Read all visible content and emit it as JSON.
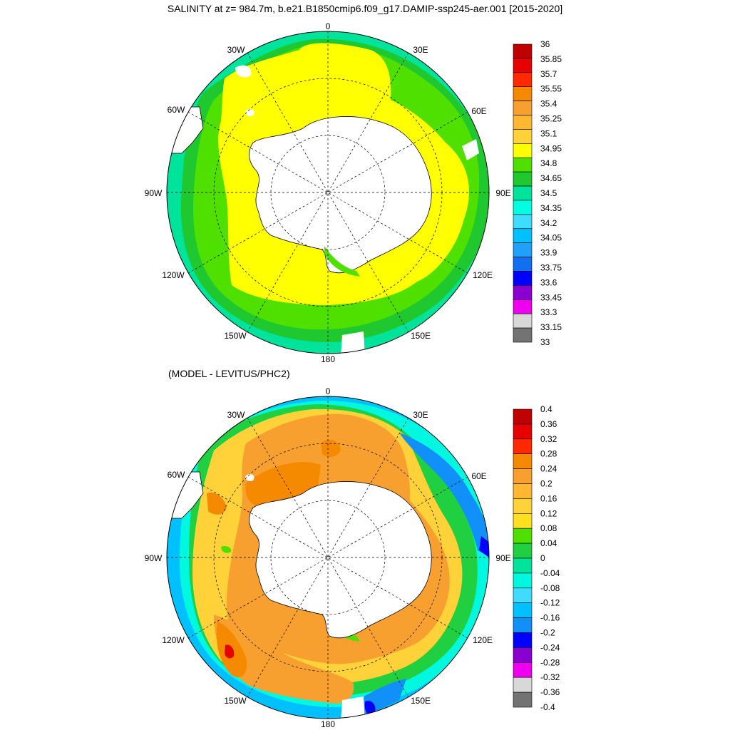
{
  "title": "SALINITY at z= 984.7m, b.e21.B1850cmip6.f09_g17.DAMIP-ssp245-aer.001 [2015-2020]",
  "diff_title": "(MODEL - LEVITUS/PHC2)",
  "lon_labels": {
    "deg0": "0",
    "e30": "30E",
    "e60": "60E",
    "e90": "90E",
    "e120": "120E",
    "e150": "150E",
    "deg180": "180",
    "w150": "150W",
    "w120": "120W",
    "w90": "90W",
    "w60": "60W",
    "w30": "30W"
  },
  "colorbar_top": {
    "labels": [
      "36",
      "35.85",
      "35.7",
      "35.55",
      "35.4",
      "35.25",
      "35.1",
      "34.95",
      "34.8",
      "34.65",
      "34.5",
      "34.35",
      "34.2",
      "34.05",
      "33.9",
      "33.75",
      "33.6",
      "33.45",
      "33.3",
      "33.15",
      "33"
    ],
    "colors": [
      "#c00000",
      "#e60000",
      "#ff2a00",
      "#f58a00",
      "#f7a030",
      "#ffb830",
      "#ffd23a",
      "#ffff00",
      "#50e000",
      "#20c830",
      "#00e39a",
      "#00ffe0",
      "#40dcff",
      "#00c0ff",
      "#20a0ff",
      "#1070f0",
      "#0000ff",
      "#8a00d0",
      "#ee00ee",
      "#d8d8d8",
      "#737373"
    ]
  },
  "colorbar_bottom": {
    "labels": [
      "0.4",
      "0.36",
      "0.32",
      "0.28",
      "0.24",
      "0.2",
      "0.16",
      "0.12",
      "0.08",
      "0.04",
      "0",
      "-0.04",
      "-0.08",
      "-0.12",
      "-0.16",
      "-0.2",
      "-0.24",
      "-0.28",
      "-0.32",
      "-0.36",
      "-0.4"
    ],
    "colors": [
      "#c00000",
      "#e60000",
      "#ff2a00",
      "#f58a00",
      "#f7a030",
      "#ffb830",
      "#ffd23a",
      "#ffe020",
      "#50e000",
      "#20d040",
      "#00e39a",
      "#00f8e0",
      "#40dcff",
      "#00c0ff",
      "#1090f8",
      "#0000ff",
      "#8a00d0",
      "#ee00ee",
      "#d8d8d8",
      "#737373"
    ]
  },
  "colors": {
    "land": "#ffffff",
    "top_yellow": "#ffff00",
    "top_green": "#50e000",
    "top_lightgreen": "#20c830",
    "top_aqua": "#00e39a",
    "top_cyan": "#00ffe0",
    "diff_gold": "#ffd23a",
    "diff_orange": "#f7a030",
    "diff_darkorange": "#f58a00",
    "diff_red": "#e60000",
    "diff_blue": "#1090f8"
  }
}
